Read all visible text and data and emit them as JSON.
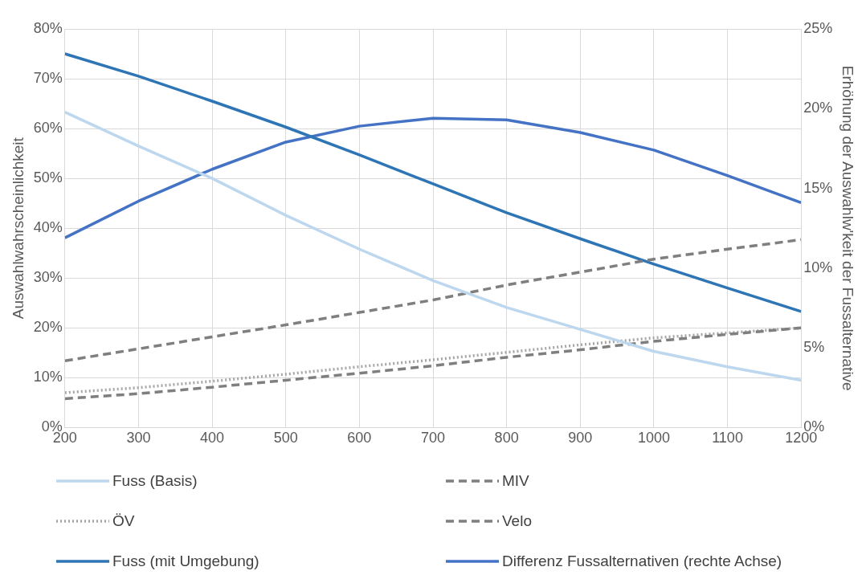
{
  "chart_data": {
    "type": "line",
    "ylabel": "Auswahlwahrscheinlichkeit",
    "y2label": "Erhöhung der Auswahlw'keit der Fussalternative",
    "x": [
      200,
      300,
      400,
      500,
      600,
      700,
      800,
      900,
      1000,
      1100,
      1200
    ],
    "xlim": [
      200,
      1200
    ],
    "xticks": [
      200,
      300,
      400,
      500,
      600,
      700,
      800,
      900,
      1000,
      1100,
      1200
    ],
    "ylim": [
      0,
      80
    ],
    "yticks": [
      {
        "value": 0,
        "label": "0%"
      },
      {
        "value": 10,
        "label": "10%"
      },
      {
        "value": 20,
        "label": "20%"
      },
      {
        "value": 30,
        "label": "30%"
      },
      {
        "value": 40,
        "label": "40%"
      },
      {
        "value": 50,
        "label": "50%"
      },
      {
        "value": 60,
        "label": "60%"
      },
      {
        "value": 70,
        "label": "70%"
      },
      {
        "value": 80,
        "label": "80%"
      }
    ],
    "y2lim": [
      0,
      25
    ],
    "y2ticks": [
      {
        "value": 0,
        "label": "0%"
      },
      {
        "value": 5,
        "label": "5%"
      },
      {
        "value": 10,
        "label": "10%"
      },
      {
        "value": 15,
        "label": "15%"
      },
      {
        "value": 20,
        "label": "20%"
      },
      {
        "value": 25,
        "label": "25%"
      }
    ],
    "grid": true,
    "legend": "bottom",
    "marker": "none",
    "series": [
      {
        "name": "Fuss (Basis)",
        "color": "#bdd7ee",
        "values": [
          63.3,
          56.5,
          50,
          42.6,
          35.8,
          29.5,
          24.1,
          19.7,
          15.3,
          12.2,
          9.5
        ]
      },
      {
        "name": "MIV",
        "color": "#7f7f7f",
        "line_style": "dashed",
        "values": [
          5.8,
          6.8,
          8.1,
          9.5,
          10.9,
          12.4,
          14.1,
          15.6,
          17.3,
          18.7,
          20
        ]
      },
      {
        "name": "ÖV",
        "color": "#a6a6a6",
        "line_style": "dotted",
        "values": [
          7,
          8,
          9.3,
          10.7,
          12.2,
          13.6,
          15.1,
          16.6,
          18,
          19,
          20
        ]
      },
      {
        "name": "Velo",
        "color": "#7f7f7f",
        "line_style": "dashed",
        "values": [
          13.4,
          15.8,
          18.2,
          20.6,
          23.1,
          25.6,
          28.6,
          31.2,
          33.8,
          35.8,
          37.7
        ]
      },
      {
        "name": "Fuss (mit Umgebung)",
        "color": "#2e75b6",
        "values": [
          75,
          70.5,
          65.5,
          60.3,
          54.7,
          48.9,
          43.1,
          37.9,
          32.8,
          28,
          23.3
        ]
      },
      {
        "name": "Differenz Fussalternativen (rechte Achse)",
        "color": "#4472c4",
        "axis": "y2",
        "values": [
          11.9,
          14.2,
          16.2,
          17.9,
          18.9,
          19.4,
          19.3,
          18.5,
          17.4,
          15.8,
          14.1
        ]
      }
    ]
  }
}
